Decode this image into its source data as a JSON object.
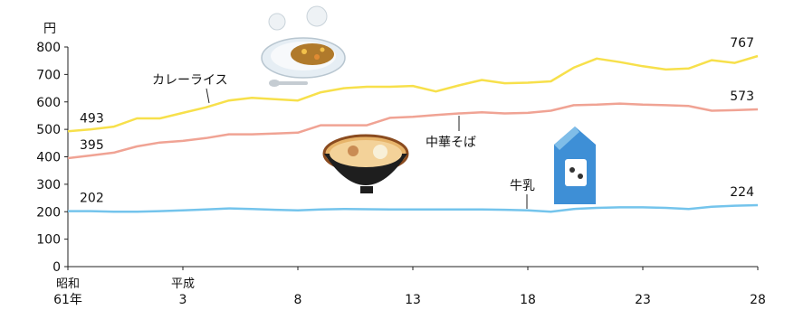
{
  "chart_data": {
    "type": "line",
    "unit_label": "円",
    "ylim": [
      0,
      800
    ],
    "y_ticks": [
      0,
      100,
      200,
      300,
      400,
      500,
      600,
      700,
      800
    ],
    "x_range": [
      61,
      28
    ],
    "x_ticks": [
      {
        "x": 0,
        "line1": "昭和",
        "line2": "61年"
      },
      {
        "x": 5,
        "line1": "平成",
        "line2": "3"
      },
      {
        "x": 10,
        "line1": "",
        "line2": "8"
      },
      {
        "x": 15,
        "line1": "",
        "line2": "13"
      },
      {
        "x": 20,
        "line1": "",
        "line2": "18"
      },
      {
        "x": 25,
        "line1": "",
        "line2": "23"
      },
      {
        "x": 30,
        "line1": "",
        "line2": "28"
      }
    ],
    "series": [
      {
        "name": "カレーライス",
        "color": "#f7e04b",
        "start_label": "493",
        "end_label": "767",
        "values": [
          493,
          500,
          510,
          540,
          540,
          560,
          580,
          605,
          615,
          610,
          605,
          635,
          650,
          655,
          655,
          658,
          638,
          660,
          680,
          668,
          670,
          675,
          725,
          758,
          745,
          730,
          718,
          722,
          752,
          742,
          767
        ]
      },
      {
        "name": "中華そば",
        "color": "#f0a394",
        "start_label": "395",
        "end_label": "573",
        "values": [
          395,
          405,
          415,
          438,
          452,
          458,
          468,
          482,
          482,
          485,
          488,
          515,
          515,
          515,
          542,
          546,
          552,
          558,
          562,
          558,
          560,
          568,
          588,
          590,
          594,
          590,
          588,
          585,
          568,
          570,
          573
        ]
      },
      {
        "name": "牛乳",
        "color": "#74c4ec",
        "start_label": "202",
        "end_label": "224",
        "values": [
          202,
          202,
          200,
          200,
          202,
          205,
          208,
          212,
          210,
          207,
          205,
          208,
          210,
          209,
          208,
          208,
          208,
          208,
          208,
          207,
          205,
          200,
          210,
          214,
          216,
          216,
          214,
          210,
          218,
          222,
          224
        ]
      }
    ],
    "annotations": [
      "カレーライス",
      "中華そば",
      "牛乳"
    ]
  }
}
